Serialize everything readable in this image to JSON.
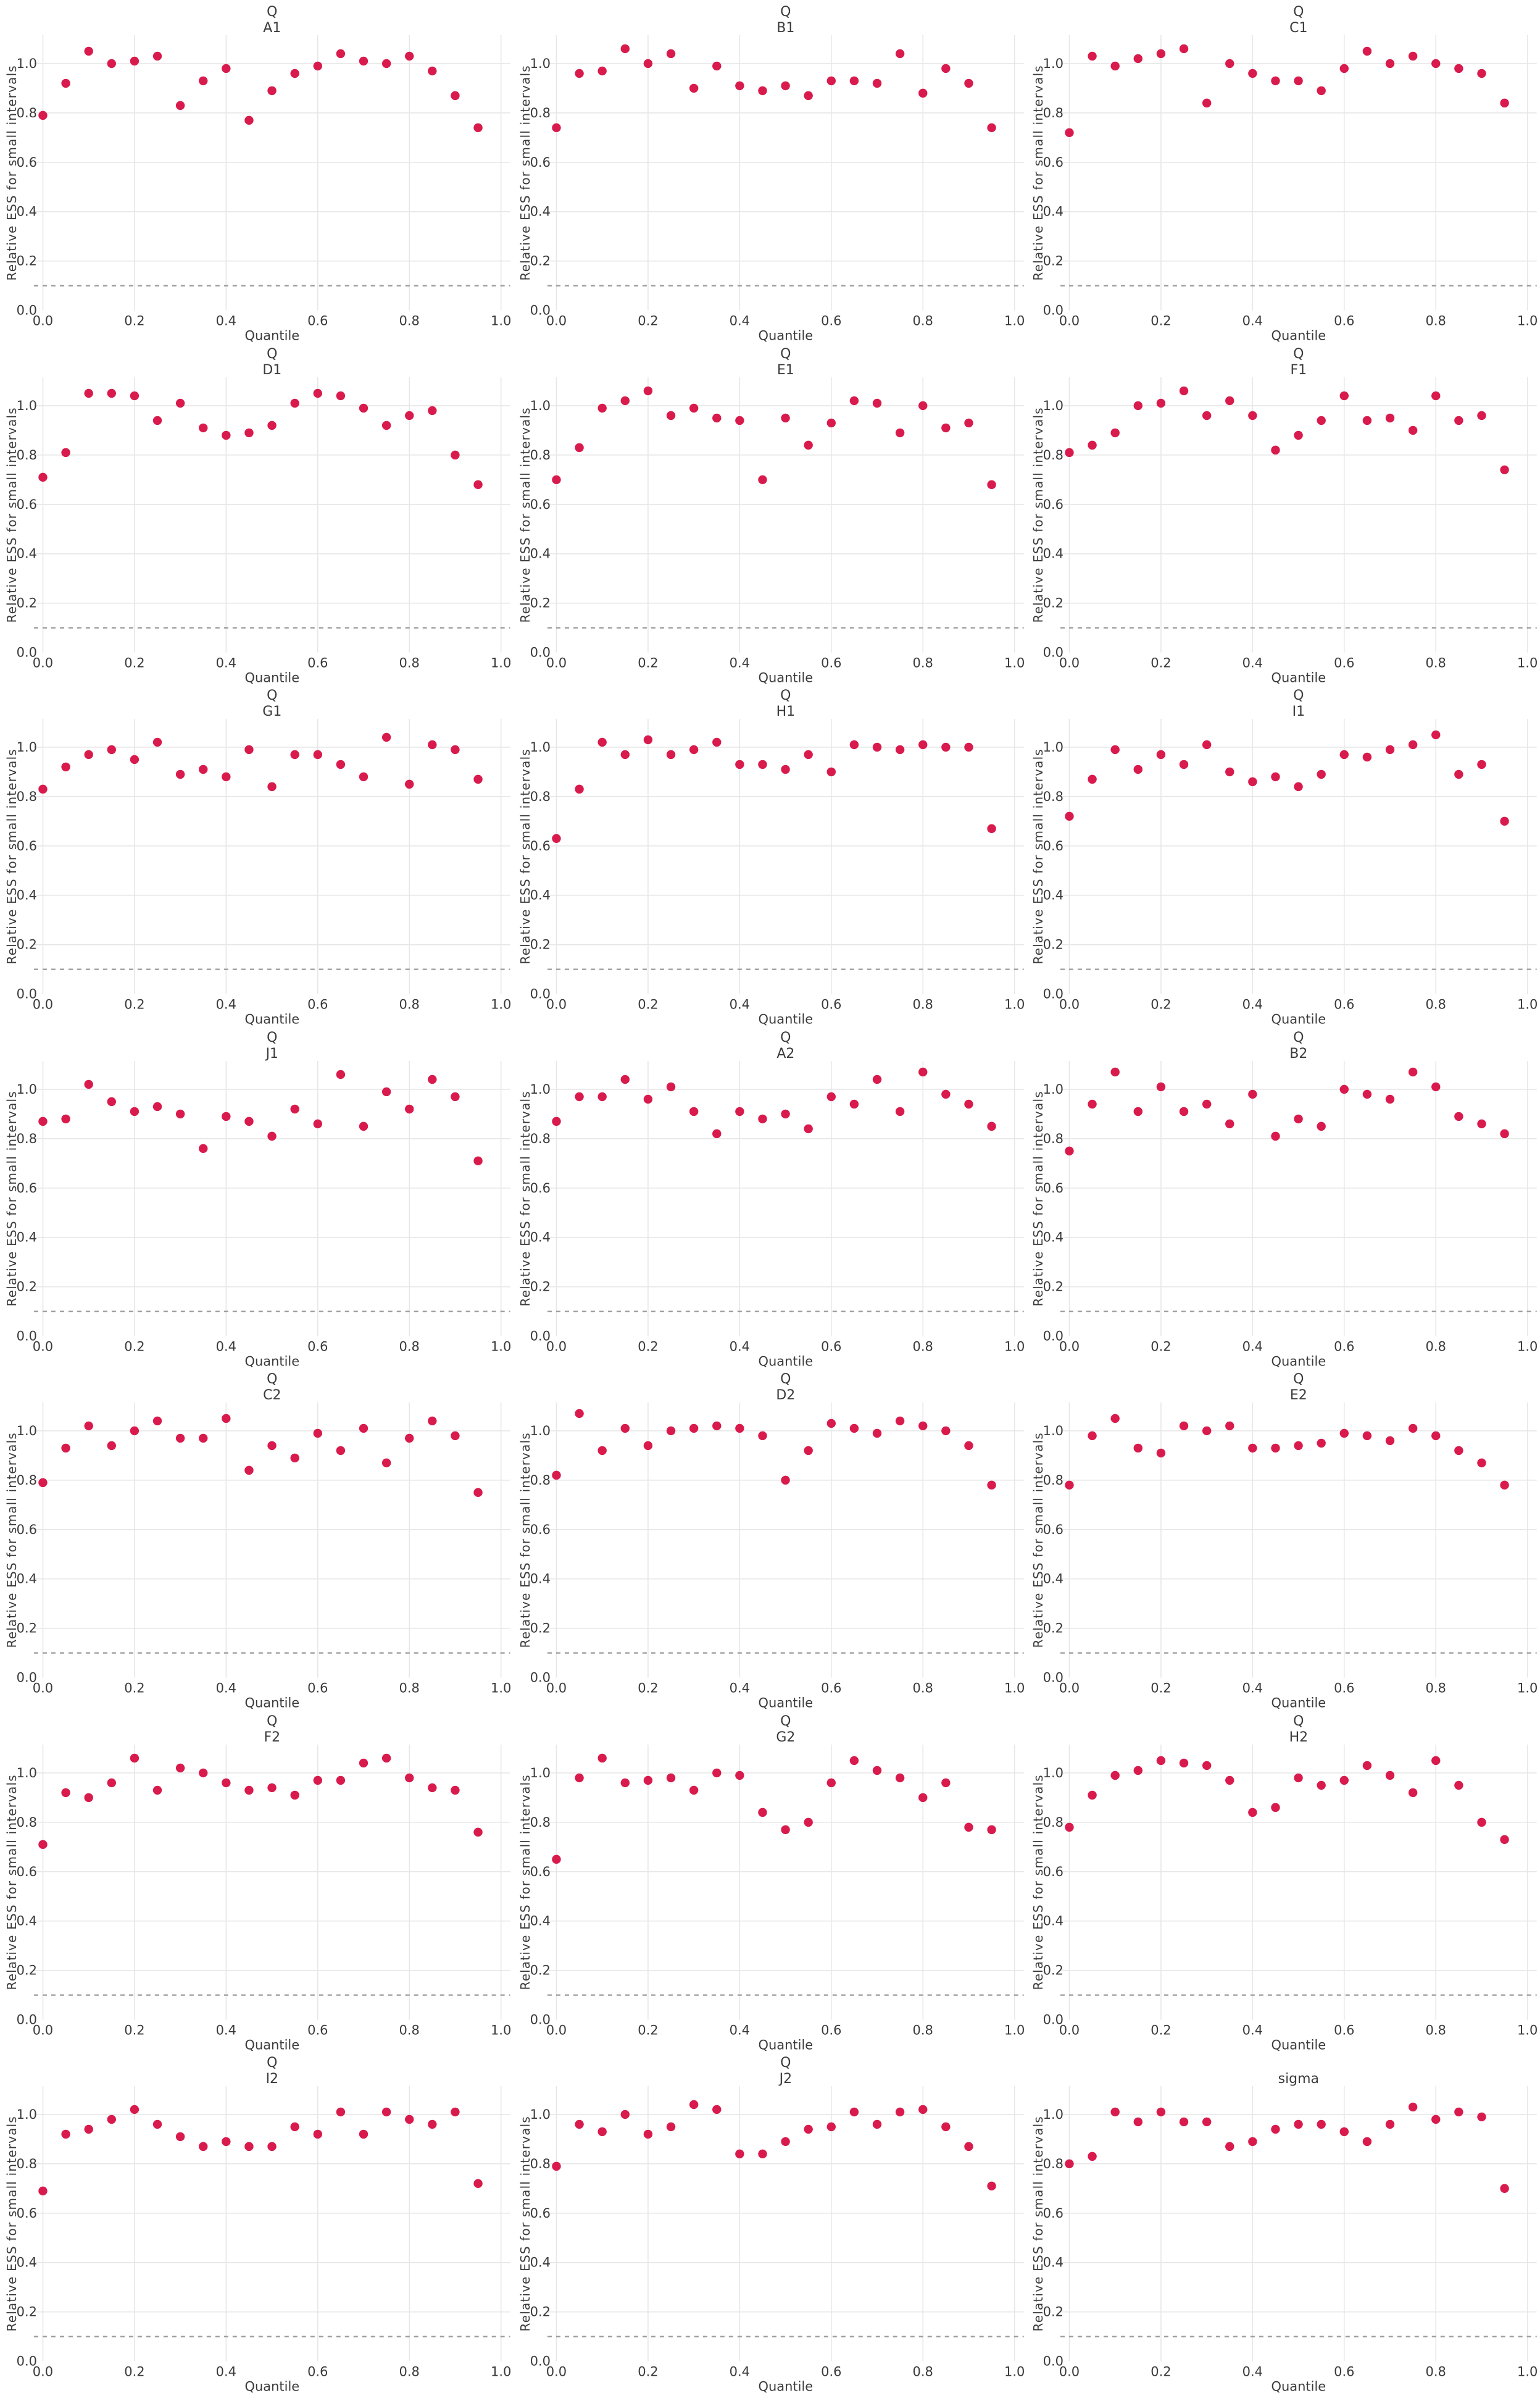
{
  "chart_data": {
    "type": "scatter",
    "layout": {
      "rows": 7,
      "cols": 3
    },
    "xlabel": "Quantile",
    "ylabel": "Relative ESS for small intervals",
    "x": [
      0.0,
      0.05,
      0.1,
      0.15,
      0.2,
      0.25,
      0.3,
      0.35,
      0.4,
      0.45,
      0.5,
      0.55,
      0.6,
      0.65,
      0.7,
      0.75,
      0.8,
      0.85,
      0.9,
      0.95
    ],
    "xticks": [
      "0.0",
      "0.2",
      "0.4",
      "0.6",
      "0.8",
      "1.0"
    ],
    "yticks": [
      "0.0",
      "0.2",
      "0.4",
      "0.6",
      "0.8",
      "1.0"
    ],
    "xlim": [
      -0.02,
      1.02
    ],
    "ylim": [
      0,
      1.115
    ],
    "grid": true,
    "legend": "none",
    "reference_line_y": 0.1,
    "colors": {
      "marker": "#d91a4c",
      "reference_line": "#9a9a9a",
      "grid": "#e7e7e7",
      "text": "#3b3b3b",
      "background": "#ffffff"
    },
    "title_prefix": "Q",
    "subplots": [
      {
        "name": "A1",
        "title_top": "Q",
        "y": [
          0.79,
          0.92,
          1.05,
          1.0,
          1.01,
          1.03,
          0.83,
          0.93,
          0.98,
          0.77,
          0.89,
          0.96,
          0.99,
          1.04,
          1.01,
          1.0,
          1.03,
          0.97,
          0.87,
          0.74
        ]
      },
      {
        "name": "B1",
        "title_top": "Q",
        "y": [
          0.74,
          0.96,
          0.97,
          1.06,
          1.0,
          1.04,
          0.9,
          0.99,
          0.91,
          0.89,
          0.91,
          0.87,
          0.93,
          0.93,
          0.92,
          1.04,
          0.88,
          0.98,
          0.92,
          0.74
        ]
      },
      {
        "name": "C1",
        "title_top": "Q",
        "y": [
          0.72,
          1.03,
          0.99,
          1.02,
          1.04,
          1.06,
          0.84,
          1.0,
          0.96,
          0.93,
          0.93,
          0.89,
          0.98,
          1.05,
          1.0,
          1.03,
          1.0,
          0.98,
          0.96,
          0.84
        ]
      },
      {
        "name": "D1",
        "title_top": "Q",
        "y": [
          0.71,
          0.81,
          1.05,
          1.05,
          1.04,
          0.94,
          1.01,
          0.91,
          0.88,
          0.89,
          0.92,
          1.01,
          1.05,
          1.04,
          0.99,
          0.92,
          0.96,
          0.98,
          0.8,
          0.68
        ]
      },
      {
        "name": "E1",
        "title_top": "Q",
        "y": [
          0.7,
          0.83,
          0.99,
          1.02,
          1.06,
          0.96,
          0.99,
          0.95,
          0.94,
          0.7,
          0.95,
          0.84,
          0.93,
          1.02,
          1.01,
          0.89,
          1.0,
          0.91,
          0.93,
          0.68
        ]
      },
      {
        "name": "F1",
        "title_top": "Q",
        "y": [
          0.81,
          0.84,
          0.89,
          1.0,
          1.01,
          1.06,
          0.96,
          1.02,
          0.96,
          0.82,
          0.88,
          0.94,
          1.04,
          0.94,
          0.95,
          0.9,
          1.04,
          0.94,
          0.96,
          0.74
        ]
      },
      {
        "name": "G1",
        "title_top": "Q",
        "y": [
          0.83,
          0.92,
          0.97,
          0.99,
          0.95,
          1.02,
          0.89,
          0.91,
          0.88,
          0.99,
          0.84,
          0.97,
          0.97,
          0.93,
          0.88,
          1.04,
          0.85,
          1.01,
          0.99,
          0.87
        ]
      },
      {
        "name": "H1",
        "title_top": "Q",
        "y": [
          0.63,
          0.83,
          1.02,
          0.97,
          1.03,
          0.97,
          0.99,
          1.02,
          0.93,
          0.93,
          0.91,
          0.97,
          0.9,
          1.01,
          1.0,
          0.99,
          1.01,
          1.0,
          1.0,
          0.67
        ]
      },
      {
        "name": "I1",
        "title_top": "Q",
        "y": [
          0.72,
          0.87,
          0.99,
          0.91,
          0.97,
          0.93,
          1.01,
          0.9,
          0.86,
          0.88,
          0.84,
          0.89,
          0.97,
          0.96,
          0.99,
          1.01,
          1.05,
          0.89,
          0.93,
          0.7
        ]
      },
      {
        "name": "J1",
        "title_top": "Q",
        "y": [
          0.87,
          0.88,
          1.02,
          0.95,
          0.91,
          0.93,
          0.9,
          0.76,
          0.89,
          0.87,
          0.81,
          0.92,
          0.86,
          1.06,
          0.85,
          0.99,
          0.92,
          1.04,
          0.97,
          0.71
        ]
      },
      {
        "name": "A2",
        "title_top": "Q",
        "y": [
          0.87,
          0.97,
          0.97,
          1.04,
          0.96,
          1.01,
          0.91,
          0.82,
          0.91,
          0.88,
          0.9,
          0.84,
          0.97,
          0.94,
          1.04,
          0.91,
          1.07,
          0.98,
          0.94,
          0.85
        ]
      },
      {
        "name": "B2",
        "title_top": "Q",
        "y": [
          0.75,
          0.94,
          1.07,
          0.91,
          1.01,
          0.91,
          0.94,
          0.86,
          0.98,
          0.81,
          0.88,
          0.85,
          1.0,
          0.98,
          0.96,
          1.07,
          1.01,
          0.89,
          0.86,
          0.82
        ]
      },
      {
        "name": "C2",
        "title_top": "Q",
        "y": [
          0.79,
          0.93,
          1.02,
          0.94,
          1.0,
          1.04,
          0.97,
          0.97,
          1.05,
          0.84,
          0.94,
          0.89,
          0.99,
          0.92,
          1.01,
          0.87,
          0.97,
          1.04,
          0.98,
          0.75
        ]
      },
      {
        "name": "D2",
        "title_top": "Q",
        "y": [
          0.82,
          1.07,
          0.92,
          1.01,
          0.94,
          1.0,
          1.01,
          1.02,
          1.01,
          0.98,
          0.8,
          0.92,
          1.03,
          1.01,
          0.99,
          1.04,
          1.02,
          1.0,
          0.94,
          0.78
        ]
      },
      {
        "name": "E2",
        "title_top": "Q",
        "y": [
          0.78,
          0.98,
          1.05,
          0.93,
          0.91,
          1.02,
          1.0,
          1.02,
          0.93,
          0.93,
          0.94,
          0.95,
          0.99,
          0.98,
          0.96,
          1.01,
          0.98,
          0.92,
          0.87,
          0.78
        ]
      },
      {
        "name": "F2",
        "title_top": "Q",
        "y": [
          0.71,
          0.92,
          0.9,
          0.96,
          1.06,
          0.93,
          1.02,
          1.0,
          0.96,
          0.93,
          0.94,
          0.91,
          0.97,
          0.97,
          1.04,
          1.06,
          0.98,
          0.94,
          0.93,
          0.76
        ]
      },
      {
        "name": "G2",
        "title_top": "Q",
        "y": [
          0.65,
          0.98,
          1.06,
          0.96,
          0.97,
          0.98,
          0.93,
          1.0,
          0.99,
          0.84,
          0.77,
          0.8,
          0.96,
          1.05,
          1.01,
          0.98,
          0.9,
          0.96,
          0.78,
          0.77
        ]
      },
      {
        "name": "H2",
        "title_top": "Q",
        "y": [
          0.78,
          0.91,
          0.99,
          1.01,
          1.05,
          1.04,
          1.03,
          0.97,
          0.84,
          0.86,
          0.98,
          0.95,
          0.97,
          1.03,
          0.99,
          0.92,
          1.05,
          0.95,
          0.8,
          0.73
        ]
      },
      {
        "name": "I2",
        "title_top": "Q",
        "y": [
          0.69,
          0.92,
          0.94,
          0.98,
          1.02,
          0.96,
          0.91,
          0.87,
          0.89,
          0.87,
          0.87,
          0.95,
          0.92,
          1.01,
          0.92,
          1.01,
          0.98,
          0.96,
          1.01,
          0.72
        ]
      },
      {
        "name": "J2",
        "title_top": "Q",
        "y": [
          0.79,
          0.96,
          0.93,
          1.0,
          0.92,
          0.95,
          1.04,
          1.02,
          0.84,
          0.84,
          0.89,
          0.94,
          0.95,
          1.01,
          0.96,
          1.01,
          1.02,
          0.95,
          0.87,
          0.71
        ]
      },
      {
        "name": "sigma",
        "title_top": "",
        "y": [
          0.8,
          0.83,
          1.01,
          0.97,
          1.01,
          0.97,
          0.97,
          0.87,
          0.89,
          0.94,
          0.96,
          0.96,
          0.93,
          0.89,
          0.96,
          1.03,
          0.98,
          1.01,
          0.99,
          0.7
        ]
      }
    ]
  }
}
